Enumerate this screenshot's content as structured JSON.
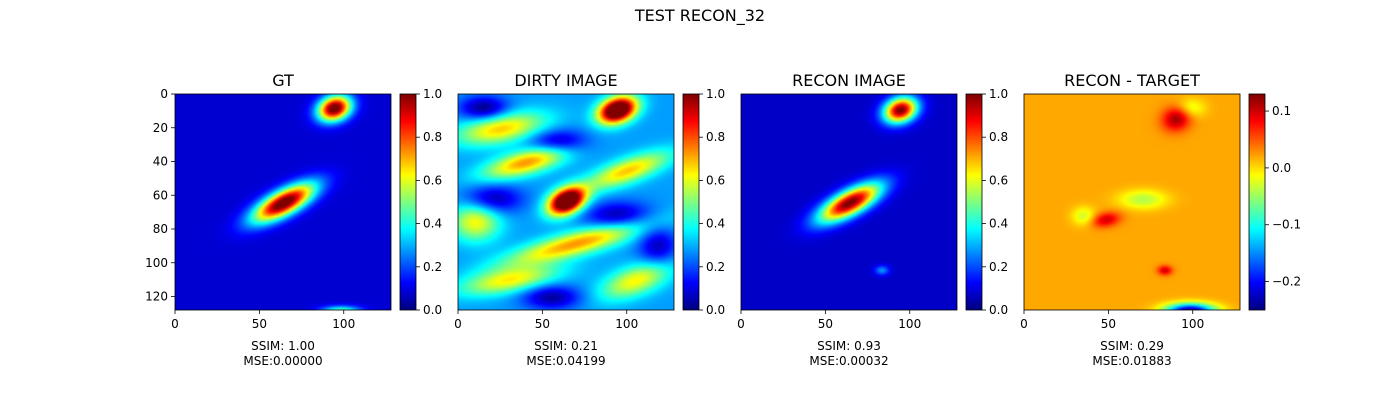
{
  "figure": {
    "suptitle": "TEST RECON_32"
  },
  "colormap": "jet",
  "chart_data": [
    {
      "type": "heatmap",
      "title": "GT",
      "xlabel": "SSIM: 1.00\nMSE:0.00000",
      "ssim": "1.00",
      "mse": "0.00000",
      "xlim": [
        0,
        128
      ],
      "ylim": [
        128,
        0
      ],
      "x_ticks": [
        "0",
        "50",
        "100"
      ],
      "y_ticks": [
        "0",
        "20",
        "40",
        "60",
        "80",
        "100",
        "120"
      ],
      "colorbar": {
        "range": [
          0.0,
          1.0
        ],
        "ticks": [
          "0.0",
          "0.2",
          "0.4",
          "0.6",
          "0.8",
          "1.0"
        ]
      },
      "background_level": 0.08,
      "blobs": [
        {
          "x": 94,
          "y": 8,
          "peak": 1.0,
          "sx": 7,
          "sy": 5,
          "angle": -20
        },
        {
          "x": 64,
          "y": 64,
          "peak": 1.0,
          "sx": 14,
          "sy": 5,
          "angle": -28
        },
        {
          "x": 98,
          "y": 128,
          "peak": 0.4,
          "sx": 8,
          "sy": 2,
          "angle": 0
        }
      ]
    },
    {
      "type": "heatmap",
      "title": "DIRTY IMAGE",
      "xlabel": "SSIM: 0.21\nMSE:0.04199",
      "ssim": "0.21",
      "mse": "0.04199",
      "xlim": [
        0,
        128
      ],
      "ylim": [
        128,
        0
      ],
      "x_ticks": [
        "0",
        "50",
        "100"
      ],
      "y_ticks": [],
      "colorbar": {
        "range": [
          0.0,
          1.0
        ],
        "ticks": [
          "0.0",
          "0.2",
          "0.4",
          "0.6",
          "0.8",
          "1.0"
        ]
      },
      "background_level": 0.28,
      "blobs": [
        {
          "x": 94,
          "y": 9,
          "peak": 1.0,
          "sx": 8,
          "sy": 5,
          "angle": -20
        },
        {
          "x": 64,
          "y": 63,
          "peak": 1.0,
          "sx": 8,
          "sy": 5,
          "angle": -25
        },
        {
          "x": 40,
          "y": 40,
          "peak": 0.45,
          "sx": 18,
          "sy": 5,
          "angle": -15
        },
        {
          "x": 70,
          "y": 88,
          "peak": 0.45,
          "sx": 30,
          "sy": 5,
          "angle": -15
        },
        {
          "x": 25,
          "y": 20,
          "peak": 0.4,
          "sx": 18,
          "sy": 6,
          "angle": -10
        },
        {
          "x": 100,
          "y": 45,
          "peak": 0.4,
          "sx": 18,
          "sy": 5,
          "angle": -20
        },
        {
          "x": 30,
          "y": 110,
          "peak": 0.35,
          "sx": 20,
          "sy": 5,
          "angle": -10
        },
        {
          "x": 105,
          "y": 110,
          "peak": 0.35,
          "sx": 15,
          "sy": 6,
          "angle": -20
        },
        {
          "x": 10,
          "y": 75,
          "peak": 0.35,
          "sx": 10,
          "sy": 8,
          "angle": 0
        }
      ],
      "holes": [
        {
          "x": 15,
          "y": 8,
          "depth": 0.28,
          "sx": 10,
          "sy": 5
        },
        {
          "x": 60,
          "y": 28,
          "depth": 0.25,
          "sx": 12,
          "sy": 5
        },
        {
          "x": 20,
          "y": 62,
          "depth": 0.25,
          "sx": 12,
          "sy": 6
        },
        {
          "x": 95,
          "y": 72,
          "depth": 0.25,
          "sx": 14,
          "sy": 6
        },
        {
          "x": 55,
          "y": 120,
          "depth": 0.25,
          "sx": 12,
          "sy": 5
        },
        {
          "x": 118,
          "y": 90,
          "depth": 0.22,
          "sx": 8,
          "sy": 8
        }
      ]
    },
    {
      "type": "heatmap",
      "title": "RECON IMAGE",
      "xlabel": "SSIM: 0.93\nMSE:0.00032",
      "ssim": "0.93",
      "mse": "0.00032",
      "xlim": [
        0,
        128
      ],
      "ylim": [
        128,
        0
      ],
      "x_ticks": [
        "0",
        "50",
        "100"
      ],
      "y_ticks": [],
      "colorbar": {
        "range": [
          0.0,
          1.0
        ],
        "ticks": [
          "0.0",
          "0.2",
          "0.4",
          "0.6",
          "0.8",
          "1.0"
        ]
      },
      "background_level": 0.07,
      "blobs": [
        {
          "x": 94,
          "y": 9,
          "peak": 0.95,
          "sx": 7,
          "sy": 5,
          "angle": -20
        },
        {
          "x": 64,
          "y": 64,
          "peak": 0.95,
          "sx": 14,
          "sy": 5,
          "angle": -28
        },
        {
          "x": 83,
          "y": 104,
          "peak": 0.2,
          "sx": 3,
          "sy": 2,
          "angle": 0
        }
      ]
    },
    {
      "type": "heatmap",
      "title": "RECON - TARGET",
      "xlabel": "SSIM: 0.29\nMSE:0.01883",
      "ssim": "0.29",
      "mse": "0.01883",
      "xlim": [
        0,
        128
      ],
      "ylim": [
        128,
        0
      ],
      "x_ticks": [
        "0",
        "50",
        "100"
      ],
      "y_ticks": [],
      "colorbar": {
        "range": [
          -0.25,
          0.13
        ],
        "ticks": [
          "0.1",
          "0.0",
          "−0.1",
          "−0.2"
        ],
        "tick_values": [
          0.1,
          0.0,
          -0.1,
          -0.2
        ]
      },
      "background_level": 0.02,
      "blobs": [
        {
          "x": 90,
          "y": 14,
          "peak": 0.1,
          "sx": 6,
          "sy": 5,
          "angle": -20
        },
        {
          "x": 48,
          "y": 74,
          "peak": 0.08,
          "sx": 6,
          "sy": 3,
          "angle": -10
        },
        {
          "x": 83,
          "y": 104,
          "peak": 0.08,
          "sx": 3,
          "sy": 2,
          "angle": 0
        }
      ],
      "holes": [
        {
          "x": 98,
          "y": 128,
          "depth": 0.27,
          "sx": 10,
          "sy": 3
        },
        {
          "x": 70,
          "y": 62,
          "depth": 0.06,
          "sx": 10,
          "sy": 4
        },
        {
          "x": 98,
          "y": 8,
          "depth": 0.05,
          "sx": 6,
          "sy": 4
        },
        {
          "x": 35,
          "y": 72,
          "depth": 0.05,
          "sx": 5,
          "sy": 4
        }
      ]
    }
  ]
}
